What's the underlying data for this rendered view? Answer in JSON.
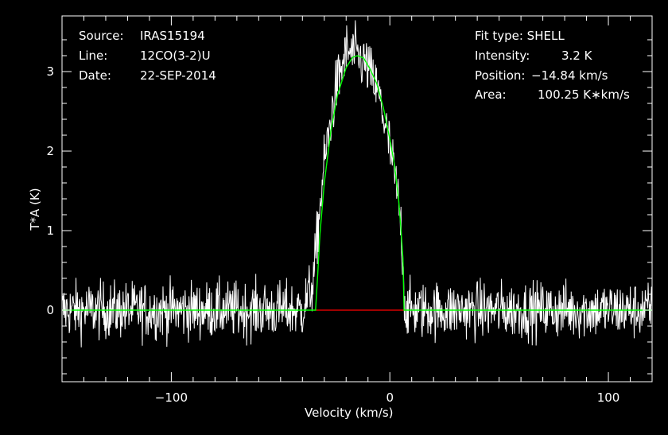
{
  "info_left": {
    "source_label": "Source:",
    "source_value": "IRAS15194",
    "line_label": "Line:",
    "line_value": "12CO(3-2)U",
    "date_label": "Date:",
    "date_value": "22-SEP-2014"
  },
  "info_right": {
    "fit_type": "Fit type: SHELL",
    "intensity_label": "Intensity:",
    "intensity_value": "3.2 K",
    "position_label": "Position:",
    "position_value": "−14.84 km/s",
    "area_label": "Area:",
    "area_value": "100.25 K∗km/s"
  },
  "colors": {
    "background": "#000000",
    "spectrum": "#ffffff",
    "fit": "#00ff00",
    "baseline": "#ff0000"
  },
  "chart_data": {
    "type": "line",
    "xlabel": "Velocity (km/s)",
    "ylabel": "T*A (K)",
    "xlim": [
      -150,
      120
    ],
    "ylim": [
      -0.9,
      3.7
    ],
    "x_ticks": [
      -100,
      0,
      100
    ],
    "x_tick_labels": [
      "−100",
      "0",
      "100"
    ],
    "y_ticks": [
      0,
      1,
      2,
      3
    ],
    "y_tick_labels": [
      "0",
      "1",
      "2",
      "3"
    ],
    "grid": false,
    "series": [
      {
        "kind": "observed spectrum",
        "noise_rms": 0.18,
        "x": [
          -150,
          -40,
          -35,
          -33,
          -30,
          -25,
          -20,
          -15,
          -10,
          -5,
          0,
          3,
          5,
          6,
          7,
          10,
          120
        ],
        "values": [
          0,
          0,
          0.35,
          1.0,
          1.85,
          2.75,
          3.25,
          3.2,
          3.05,
          2.7,
          2.05,
          1.55,
          1.1,
          0.6,
          0,
          0,
          0
        ]
      },
      {
        "kind": "SHELL fit",
        "x": [
          -150,
          -34,
          -33,
          -32,
          -30,
          -27,
          -24,
          -20,
          -17,
          -14.84,
          -12,
          -9,
          -6,
          -3,
          0,
          2,
          4,
          5,
          6,
          6.5,
          120
        ],
        "values": [
          0,
          0,
          0.45,
          0.95,
          1.6,
          2.25,
          2.7,
          3.05,
          3.18,
          3.2,
          3.17,
          3.03,
          2.85,
          2.55,
          2.15,
          1.85,
          1.4,
          1.05,
          0.65,
          0,
          0
        ]
      },
      {
        "kind": "baseline window",
        "x": [
          -35,
          7
        ],
        "values": [
          0,
          0
        ]
      }
    ]
  }
}
